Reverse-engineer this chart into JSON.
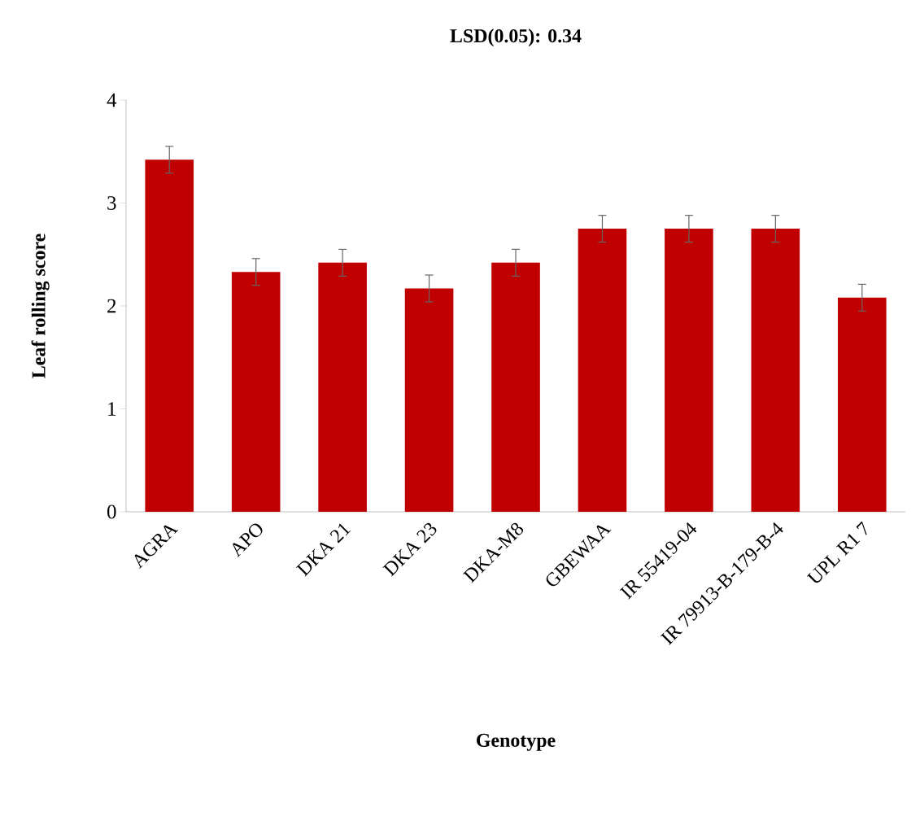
{
  "chart_data": {
    "type": "bar",
    "title": "LSD(0.05): 0.34",
    "xlabel": "Genotype",
    "ylabel": "Leaf rolling score",
    "categories": [
      "AGRA",
      "APO",
      "DKA 21",
      "DKA 23",
      "DKA-M8",
      "GBEWAA",
      "IR 55419-04",
      "IR 79913-B-179-B-4",
      "UPL R1 7"
    ],
    "values": [
      3.42,
      2.33,
      2.42,
      2.17,
      2.42,
      2.75,
      2.75,
      2.75,
      2.08
    ],
    "errors": [
      0.13,
      0.13,
      0.13,
      0.13,
      0.13,
      0.13,
      0.13,
      0.13,
      0.13
    ],
    "color": "#c00000",
    "ylim": [
      0,
      4
    ],
    "yticks": [
      0,
      1,
      2,
      3,
      4
    ]
  }
}
